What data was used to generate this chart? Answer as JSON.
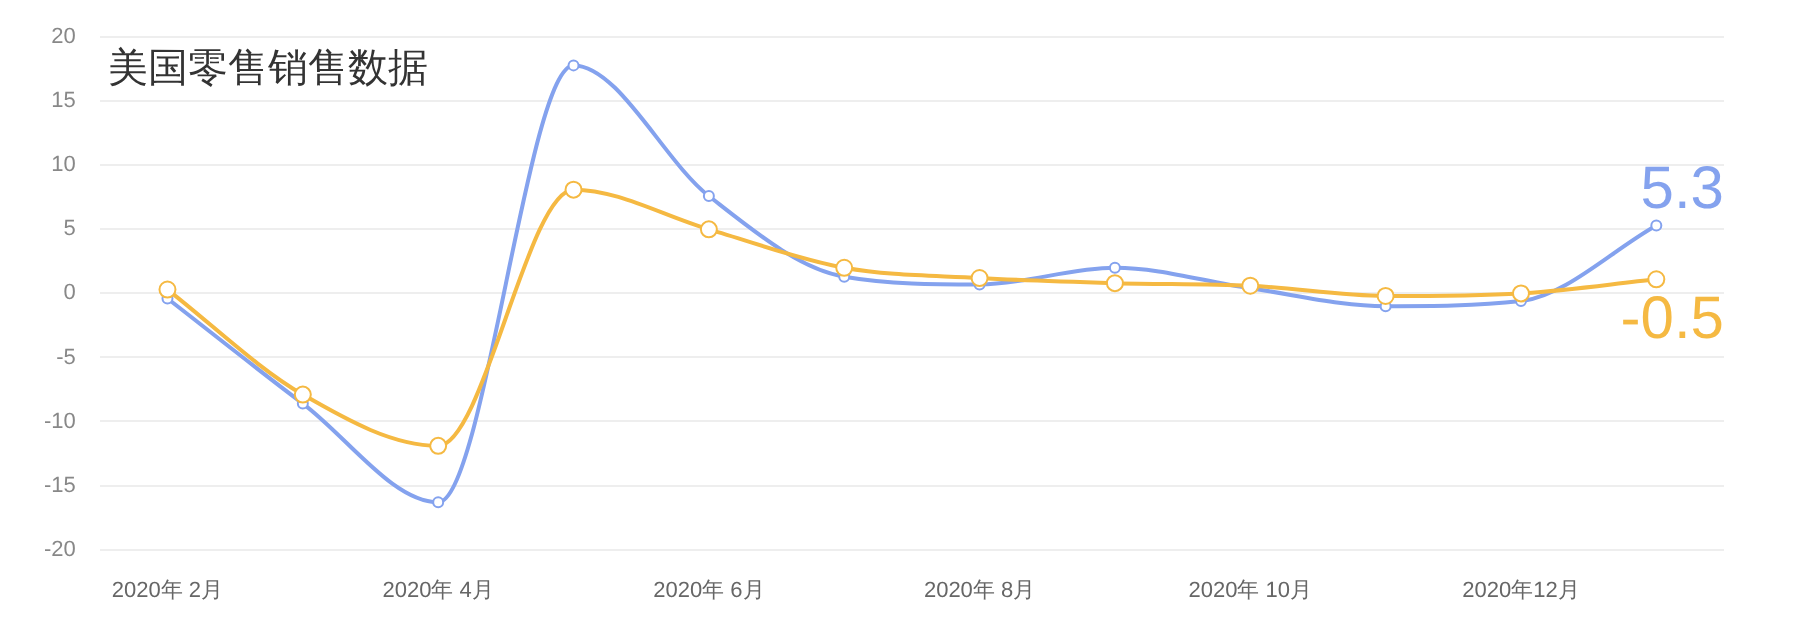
{
  "chart_data": {
    "type": "line",
    "title": "美国零售销售数据",
    "categories": [
      "2020年 2月",
      null,
      "2020年 4月",
      null,
      "2020年 6月",
      null,
      "2020年 8月",
      null,
      "2020年 10月",
      null,
      "2020年12月",
      null
    ],
    "series": [
      {
        "color": "#84a2ee",
        "values": [
          -0.4,
          -8.6,
          -16.3,
          17.8,
          7.6,
          1.3,
          0.7,
          2.0,
          0.4,
          -1.0,
          -0.6,
          5.3
        ]
      },
      {
        "color": "#f5b942",
        "values": [
          0.3,
          -7.9,
          -11.9,
          8.1,
          5.0,
          2.0,
          1.2,
          0.8,
          0.6,
          -0.2,
          0,
          1.1
        ]
      }
    ],
    "annotations": [
      "5.3",
      "-0.5"
    ],
    "ylim": [
      -20,
      20
    ],
    "yticks": [
      -20,
      -15,
      -10,
      -5,
      0,
      5,
      10,
      15,
      20
    ],
    "grid": "y",
    "marker": "circle",
    "line_style": "solid",
    "legend": false
  }
}
